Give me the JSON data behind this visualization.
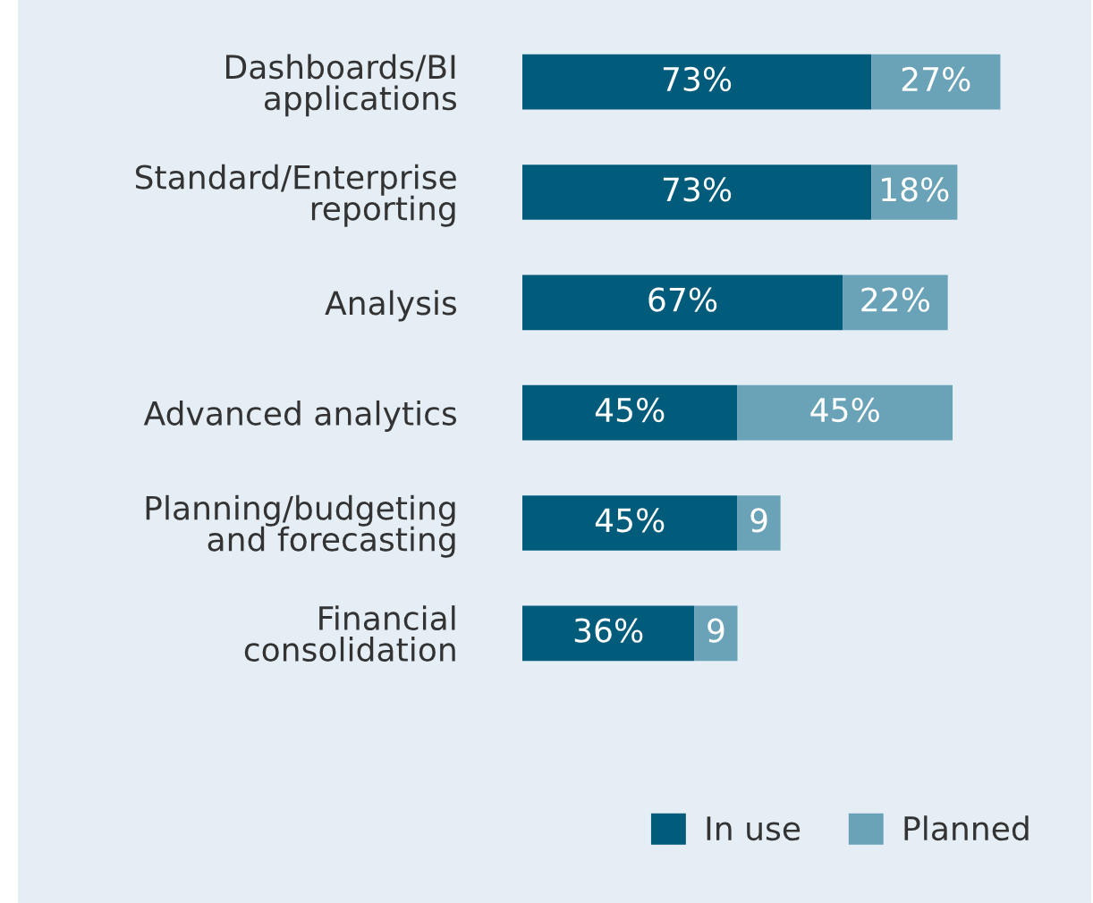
{
  "chart_data": {
    "type": "bar",
    "orientation": "horizontal",
    "stacked": true,
    "legend": "bottom right",
    "grid": false,
    "categories": [
      "Dashboards/BI\napplications",
      "Standard/Enterprise\nreporting",
      "Analysis",
      "Advanced analytics",
      "Planning/budgeting\nand forecasting",
      "Financial\nconsolidation"
    ],
    "series": [
      {
        "name": "In use",
        "color": "#005c7a",
        "values": [
          73,
          73,
          67,
          45,
          45,
          36
        ],
        "value_labels": [
          "73%",
          "73%",
          "67%",
          "45%",
          "45%",
          "36%"
        ]
      },
      {
        "name": "Planned",
        "color": "#6aa3b8",
        "values": [
          27,
          18,
          22,
          45,
          9,
          9
        ],
        "value_labels": [
          "27%",
          "18%",
          "22%",
          "45%",
          "9",
          "9"
        ]
      }
    ]
  }
}
